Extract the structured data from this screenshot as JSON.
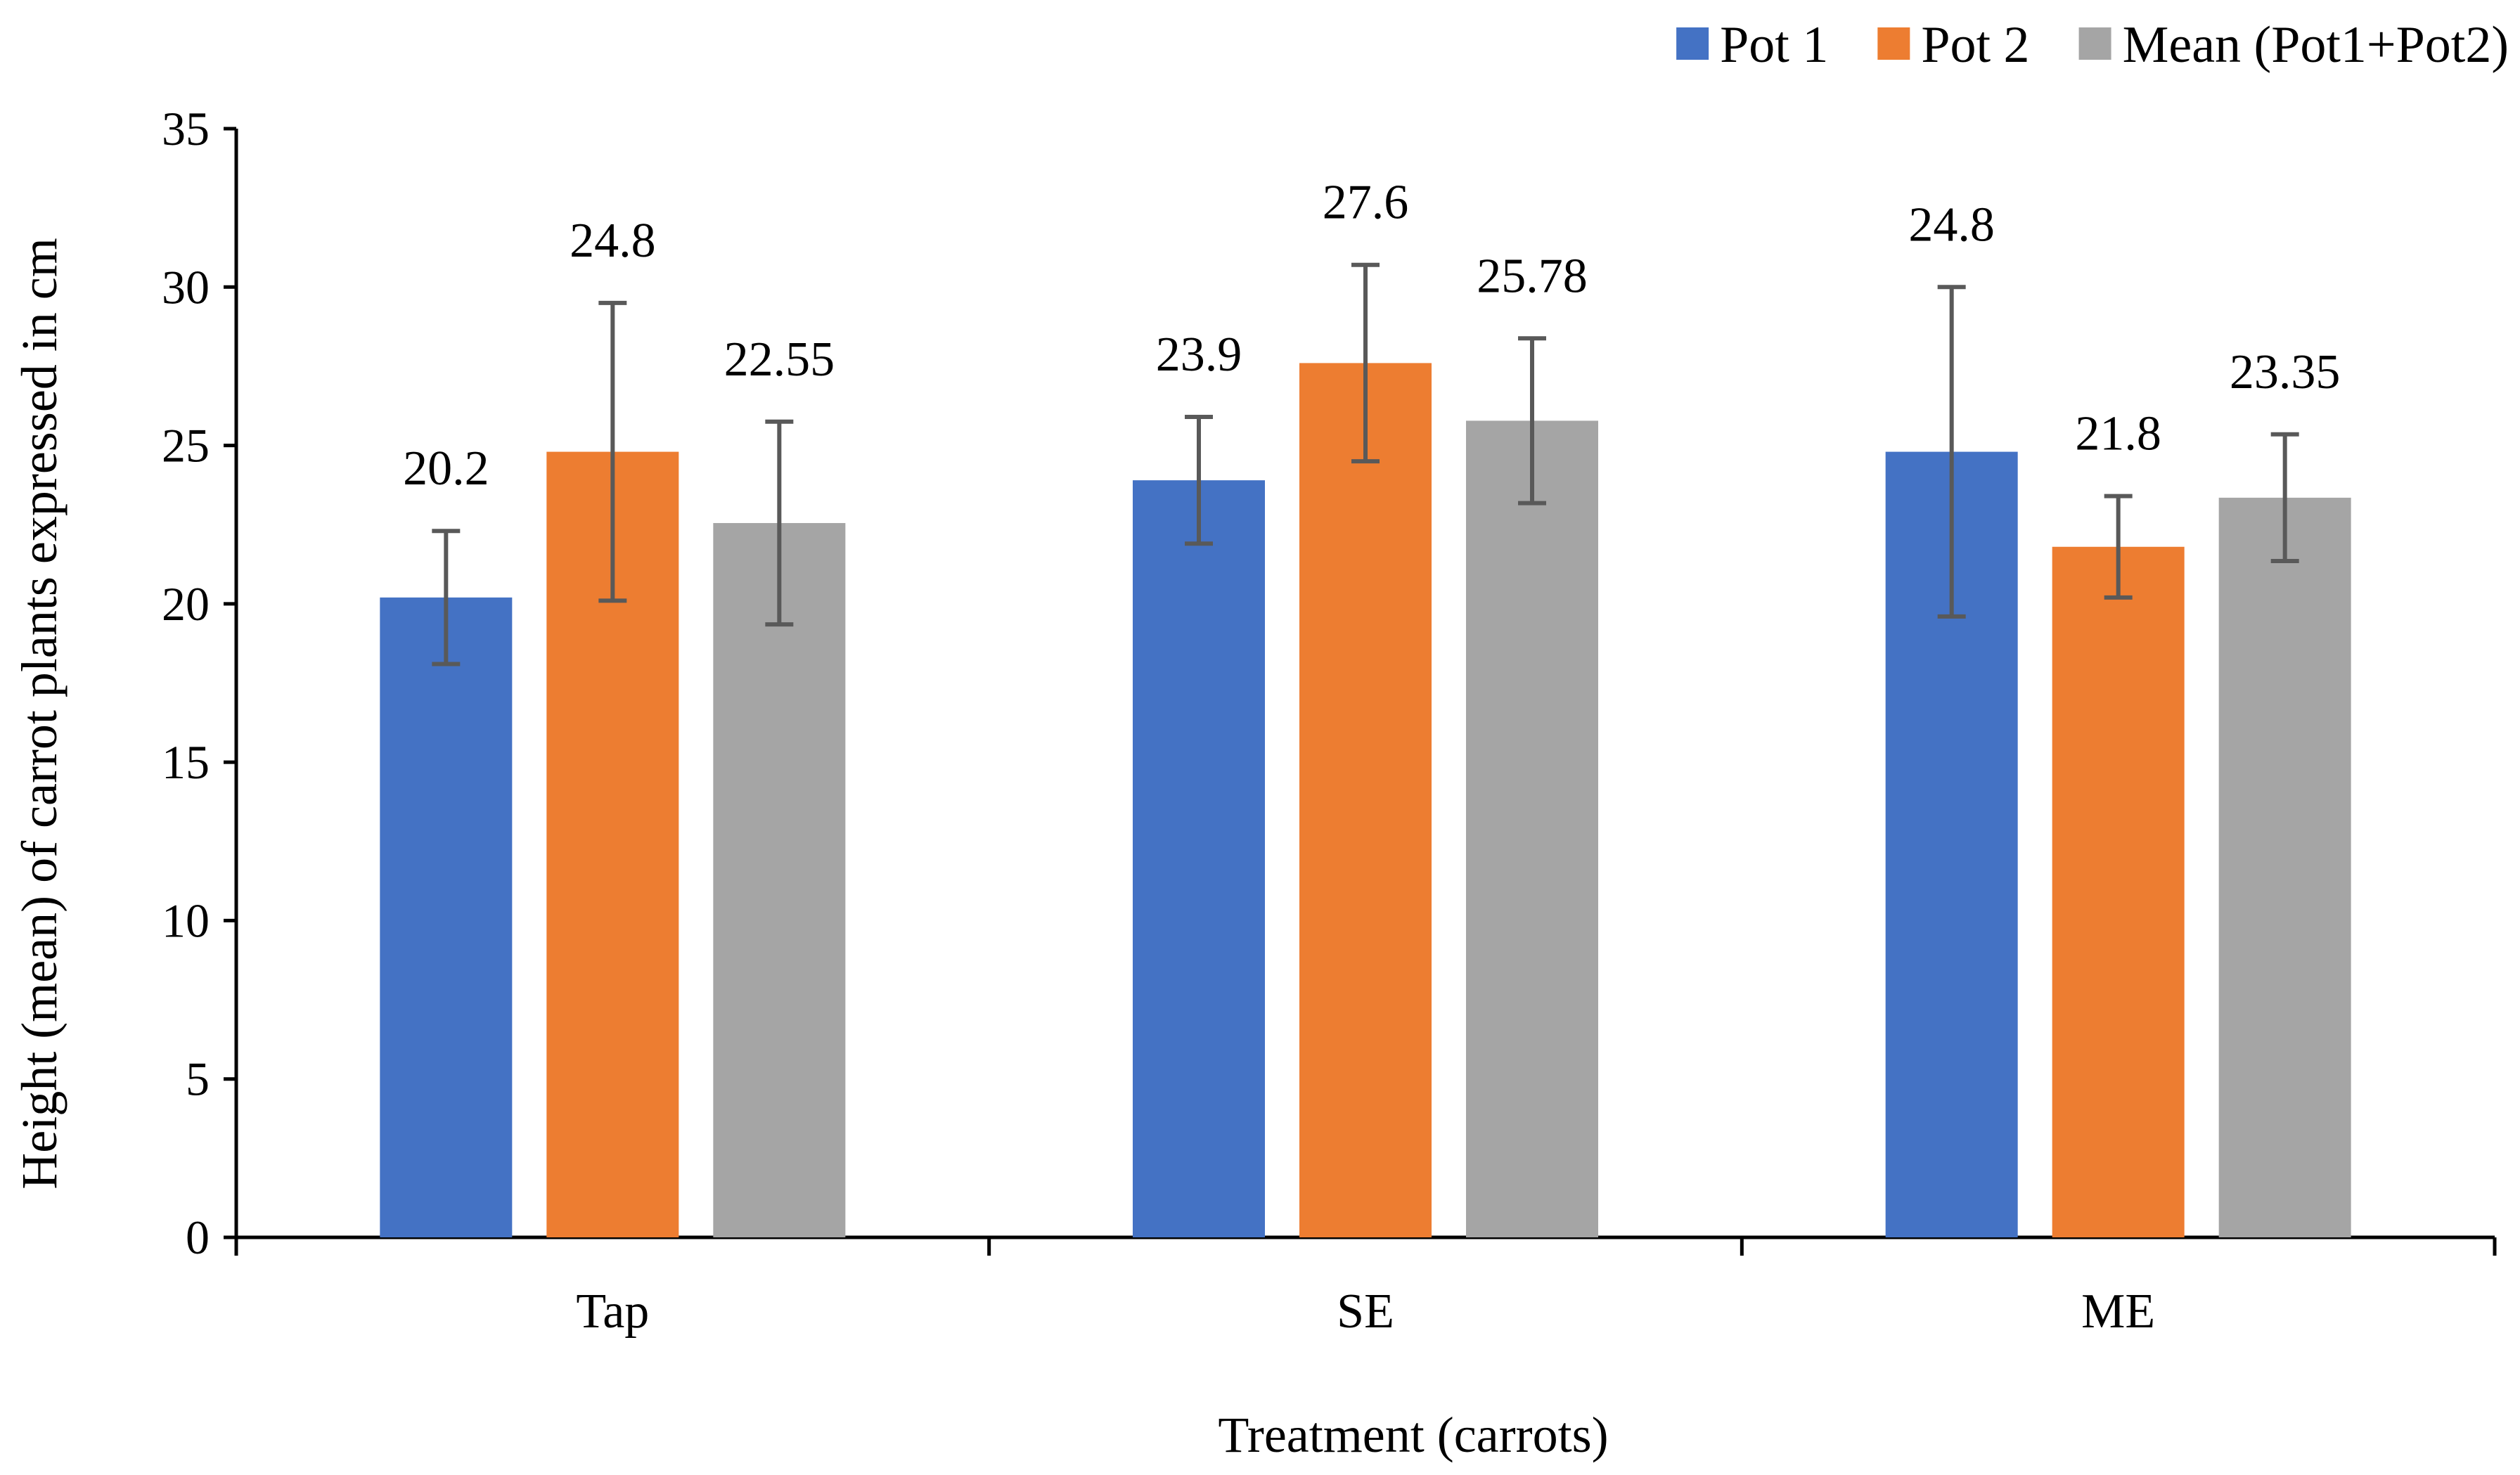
{
  "chart_data": {
    "type": "bar",
    "title": "",
    "xlabel": "Treatment (carrots)",
    "ylabel": "Height (mean) of carrot plants expressed in cm",
    "categories": [
      "Tap",
      "SE",
      "ME"
    ],
    "ylim": [
      0,
      35
    ],
    "yticks": [
      0,
      5,
      10,
      15,
      20,
      25,
      30,
      35
    ],
    "grid": false,
    "legend_position": "top-right",
    "series": [
      {
        "name": "Pot 1",
        "color": "#4472C4",
        "values": [
          20.2,
          23.9,
          24.8
        ],
        "labels": [
          "20.2",
          "23.9",
          "24.8"
        ],
        "error_bars": [
          2.1,
          2.0,
          5.2
        ]
      },
      {
        "name": "Pot 2",
        "color": "#ED7D31",
        "values": [
          24.8,
          27.6,
          21.8
        ],
        "labels": [
          "24.8",
          "27.6",
          "21.8"
        ],
        "error_bars": [
          4.7,
          3.1,
          1.6
        ]
      },
      {
        "name": "Mean (Pot1+Pot2)",
        "color": "#A5A5A5",
        "values": [
          22.55,
          25.78,
          23.35
        ],
        "labels": [
          "22.55",
          "25.78",
          "23.35"
        ],
        "error_bars": [
          3.2,
          2.6,
          2.0
        ]
      }
    ],
    "error_bar_color": "#595959",
    "axis_color": "#000000"
  }
}
